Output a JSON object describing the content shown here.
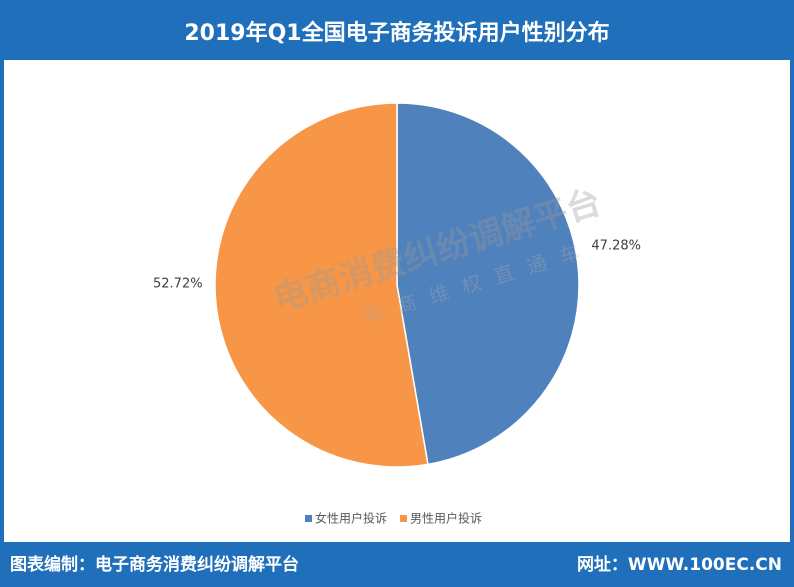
{
  "chart_data": {
    "type": "pie",
    "title": "2019年Q1全国电子商务投诉用户性别分布",
    "categories": [
      "女性用户投诉",
      "男性用户投诉"
    ],
    "values": [
      47.28,
      52.72
    ],
    "value_labels": [
      "47.28%",
      "52.72%"
    ],
    "colors": [
      "#4f81bd",
      "#f79646"
    ],
    "legend": "bottom"
  },
  "watermark": {
    "main": "电商消费纠纷调解平台",
    "sub": "电商维权直通车"
  },
  "footer": {
    "left": "图表编制：电子商务消费纠纷调解平台",
    "right": "网址：WWW.100EC.CN"
  }
}
